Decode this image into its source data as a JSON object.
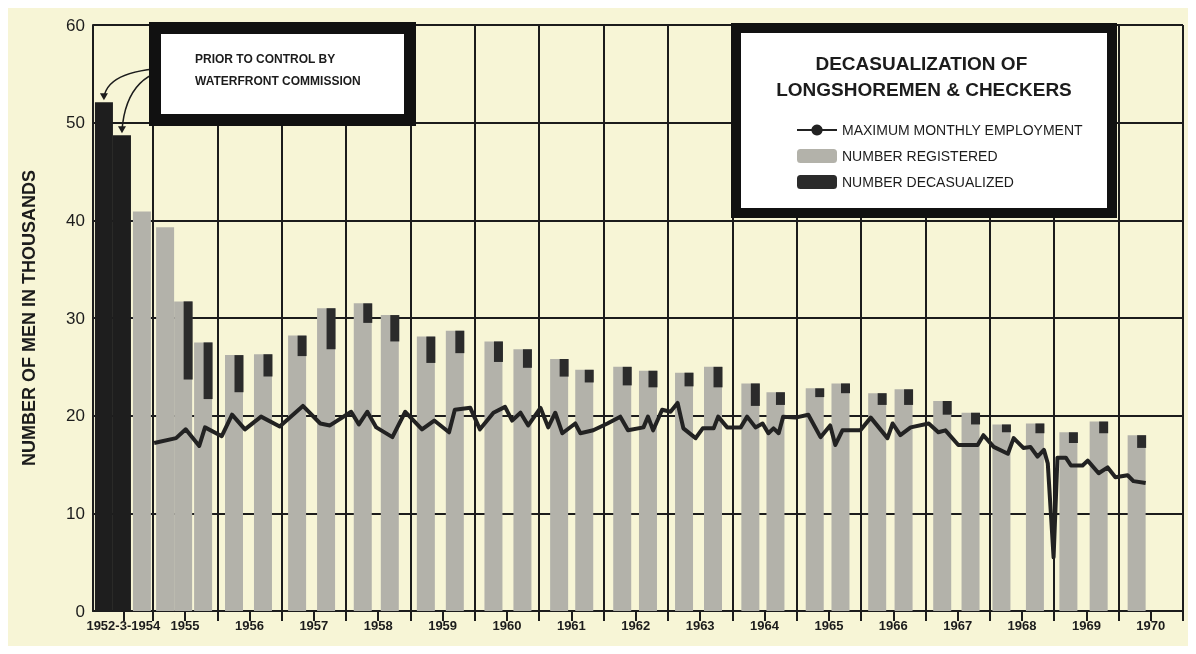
{
  "chart_data": {
    "type": "bar",
    "legend_title": "DECASUALIZATION OF LONGSHOREMEN & CHECKERS",
    "ylabel": "NUMBER OF MEN IN THOUSANDS",
    "annotations": [
      {
        "text": "PRIOR TO CONTROL BY WATERFRONT COMMISSION",
        "x": 1954.24,
        "y": 52.1
      }
    ],
    "xlim": [
      1954.07,
      1971
    ],
    "ylim": [
      0,
      60
    ],
    "yticks": [
      0,
      10,
      20,
      30,
      40,
      50,
      60
    ],
    "xticks": [
      {
        "value": 1954.54,
        "label": "1952-3-1954"
      },
      {
        "value": 1955,
        "label": null
      },
      {
        "value": 1955.5,
        "label": "1955"
      },
      {
        "value": 1956,
        "label": null
      },
      {
        "value": 1956.5,
        "label": "1956"
      },
      {
        "value": 1957,
        "label": null
      },
      {
        "value": 1957.5,
        "label": "1957"
      },
      {
        "value": 1958,
        "label": null
      },
      {
        "value": 1958.5,
        "label": "1958"
      },
      {
        "value": 1959,
        "label": null
      },
      {
        "value": 1959.5,
        "label": "1959"
      },
      {
        "value": 1960,
        "label": null
      },
      {
        "value": 1960.5,
        "label": "1960"
      },
      {
        "value": 1961,
        "label": null
      },
      {
        "value": 1961.5,
        "label": "1961"
      },
      {
        "value": 1962,
        "label": null
      },
      {
        "value": 1962.5,
        "label": "1962"
      },
      {
        "value": 1963,
        "label": null
      },
      {
        "value": 1963.5,
        "label": "1963"
      },
      {
        "value": 1964,
        "label": null
      },
      {
        "value": 1964.5,
        "label": "1964"
      },
      {
        "value": 1965,
        "label": null
      },
      {
        "value": 1965.5,
        "label": "1965"
      },
      {
        "value": 1966,
        "label": null
      },
      {
        "value": 1966.5,
        "label": "1966"
      },
      {
        "value": 1967,
        "label": null
      },
      {
        "value": 1967.5,
        "label": "1967"
      },
      {
        "value": 1968,
        "label": null
      },
      {
        "value": 1968.5,
        "label": "1968"
      },
      {
        "value": 1969,
        "label": null
      },
      {
        "value": 1969.5,
        "label": "1969"
      },
      {
        "value": 1970,
        "label": null
      },
      {
        "value": 1970.5,
        "label": "1970"
      },
      {
        "value": 1971,
        "label": null
      }
    ],
    "grid": true,
    "legend": "top right",
    "series": [
      {
        "name": "MAXIMUM MONTHLY EMPLOYMENT",
        "type": "line",
        "color": "#222222",
        "x": [
          1955.02,
          1955.36,
          1955.51,
          1955.72,
          1955.81,
          1956.07,
          1956.23,
          1956.43,
          1956.68,
          1956.97,
          1957.33,
          1957.6,
          1957.75,
          1958.08,
          1958.2,
          1958.33,
          1958.47,
          1958.72,
          1958.92,
          1959.18,
          1959.37,
          1959.6,
          1959.69,
          1959.93,
          1960.08,
          1960.29,
          1960.47,
          1960.58,
          1960.71,
          1960.83,
          1961.02,
          1961.14,
          1961.25,
          1961.36,
          1961.56,
          1961.64,
          1961.84,
          1962.06,
          1962.26,
          1962.38,
          1962.62,
          1962.69,
          1962.77,
          1962.91,
          1963.04,
          1963.15,
          1963.24,
          1963.43,
          1963.54,
          1963.71,
          1963.78,
          1963.92,
          1964.13,
          1964.23,
          1964.36,
          1964.47,
          1964.56,
          1964.64,
          1964.72,
          1964.79,
          1964.98,
          1965.18,
          1965.37,
          1965.52,
          1965.6,
          1965.71,
          1965.99,
          1966.15,
          1966.41,
          1966.49,
          1966.61,
          1966.77,
          1967.05,
          1967.2,
          1967.31,
          1967.51,
          1967.81,
          1967.9,
          1968.06,
          1968.28,
          1968.37,
          1968.52,
          1968.63,
          1968.74,
          1968.84,
          1968.9,
          1968.99,
          1969.05,
          1969.18,
          1969.26,
          1969.44,
          1969.52,
          1969.69,
          1969.83,
          1969.95,
          1970.14,
          1970.23,
          1970.42
        ],
        "values": [
          17.2,
          17.7,
          18.6,
          16.9,
          18.8,
          17.9,
          20.1,
          18.6,
          19.9,
          18.9,
          21.0,
          19.2,
          19.0,
          20.4,
          19.1,
          20.4,
          18.8,
          17.8,
          20.4,
          18.6,
          19.5,
          18.3,
          20.6,
          20.8,
          18.6,
          20.3,
          20.9,
          19.5,
          20.3,
          19.0,
          20.8,
          18.8,
          20.3,
          18.2,
          19.2,
          18.2,
          18.5,
          19.2,
          19.9,
          18.5,
          18.8,
          19.9,
          18.5,
          20.6,
          20.4,
          21.3,
          18.7,
          17.7,
          18.7,
          18.7,
          19.9,
          18.8,
          18.8,
          19.9,
          18.8,
          19.2,
          18.2,
          18.7,
          18.2,
          19.9,
          19.8,
          20.1,
          17.8,
          19.0,
          17.0,
          18.5,
          18.5,
          19.8,
          17.7,
          19.2,
          18.0,
          18.8,
          19.2,
          18.3,
          18.5,
          17.0,
          17.0,
          18.0,
          16.8,
          16.1,
          17.7,
          16.7,
          16.8,
          15.8,
          16.5,
          15.1,
          5.5,
          15.7,
          15.7,
          14.9,
          14.9,
          15.4,
          14.1,
          14.7,
          13.7,
          13.9,
          13.3,
          13.1
        ]
      },
      {
        "name": "NUMBER REGISTERED",
        "color": "#b3b2aa",
        "colors": [
          "#1e1e1e",
          "#1e1e1e",
          "#b3b2aa",
          "#b3b2aa",
          "#b3b2aa",
          "#b3b2aa",
          "#b3b2aa",
          "#b3b2aa",
          "#b3b2aa",
          "#b3b2aa",
          "#b3b2aa",
          "#b3b2aa",
          "#b3b2aa",
          "#b3b2aa",
          "#b3b2aa",
          "#b3b2aa",
          "#b3b2aa",
          "#b3b2aa",
          "#b3b2aa",
          "#b3b2aa",
          "#b3b2aa",
          "#b3b2aa",
          "#b3b2aa",
          "#b3b2aa",
          "#b3b2aa",
          "#b3b2aa",
          "#b3b2aa",
          "#b3b2aa",
          "#b3b2aa",
          "#b3b2aa",
          "#b3b2aa",
          "#b3b2aa",
          "#b3b2aa",
          "#b3b2aa",
          "#b3b2aa"
        ],
        "x": [
          1954.24,
          1954.52,
          1954.83,
          1955.19,
          1955.47,
          1955.78,
          1956.26,
          1956.71,
          1957.24,
          1957.69,
          1958.26,
          1958.68,
          1959.24,
          1959.69,
          1960.29,
          1960.74,
          1961.31,
          1961.7,
          1962.29,
          1962.69,
          1963.25,
          1963.7,
          1964.28,
          1964.67,
          1965.28,
          1965.68,
          1966.25,
          1966.66,
          1967.26,
          1967.7,
          1968.18,
          1968.7,
          1969.22,
          1969.69,
          1970.28
        ],
        "values": [
          52.1,
          48.7,
          40.9,
          39.3,
          31.7,
          27.5,
          26.2,
          26.3,
          28.2,
          31.0,
          31.5,
          30.3,
          28.1,
          28.7,
          27.6,
          26.8,
          25.8,
          24.7,
          25.0,
          24.6,
          24.4,
          25.0,
          23.3,
          22.4,
          22.8,
          23.3,
          22.3,
          22.7,
          21.5,
          20.3,
          19.1,
          19.2,
          18.3,
          19.4,
          18.0
        ]
      },
      {
        "name": "NUMBER DECASUALIZED",
        "color": "#2b2b2b",
        "x": [
          1955.47,
          1955.78,
          1956.26,
          1956.71,
          1957.24,
          1957.69,
          1958.26,
          1958.68,
          1959.24,
          1959.69,
          1960.29,
          1960.74,
          1961.31,
          1961.7,
          1962.29,
          1962.69,
          1963.25,
          1963.7,
          1964.28,
          1964.67,
          1965.28,
          1965.68,
          1966.25,
          1966.66,
          1967.26,
          1967.7,
          1968.18,
          1968.7,
          1969.22,
          1969.69,
          1970.28
        ],
        "base": [
          23.7,
          21.7,
          22.4,
          24.0,
          26.1,
          26.8,
          29.5,
          27.6,
          25.4,
          26.4,
          25.5,
          24.9,
          24.0,
          23.4,
          23.1,
          22.9,
          23.0,
          22.9,
          21.0,
          21.1,
          21.9,
          22.3,
          21.1,
          21.1,
          20.1,
          19.1,
          18.3,
          18.2,
          17.2,
          18.2,
          16.7
        ],
        "values": [
          8.0,
          5.8,
          3.8,
          2.3,
          2.1,
          4.2,
          2.0,
          2.7,
          2.7,
          2.3,
          2.1,
          1.9,
          1.8,
          1.3,
          1.9,
          1.7,
          1.4,
          2.1,
          2.3,
          1.3,
          0.9,
          1.0,
          1.2,
          1.6,
          1.4,
          1.2,
          0.8,
          1.0,
          1.1,
          1.2,
          1.3
        ]
      }
    ]
  }
}
